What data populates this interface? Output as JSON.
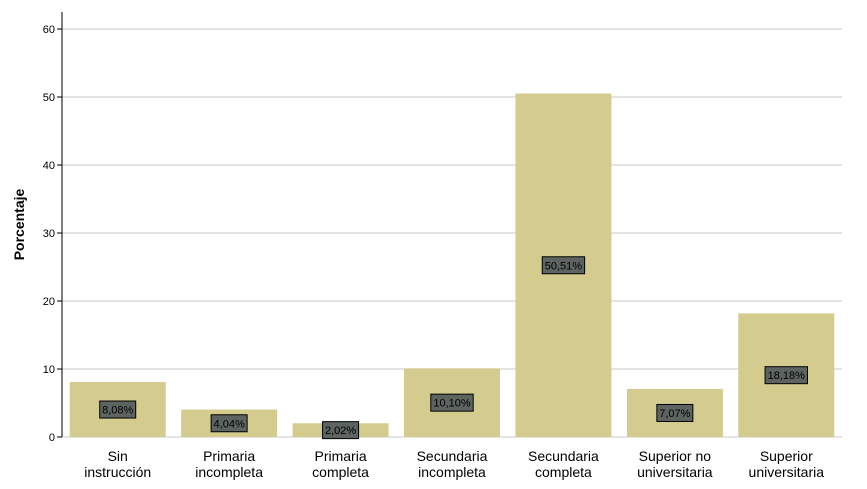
{
  "chart_data": {
    "type": "bar",
    "title": "",
    "xlabel": "",
    "ylabel": "Porcentaje",
    "ylim": [
      0,
      60
    ],
    "yticks": [
      0,
      10,
      20,
      30,
      40,
      50,
      60
    ],
    "grid": true,
    "categories": [
      [
        "Sin",
        "instrucción"
      ],
      [
        "Primaria",
        "incompleta"
      ],
      [
        "Primaria",
        "completa"
      ],
      [
        "Secundaria",
        "incompleta"
      ],
      [
        "Secundaria",
        "completa"
      ],
      [
        "Superior no",
        "universitaria"
      ],
      [
        "Superior",
        "universitaria"
      ]
    ],
    "values": [
      8.08,
      4.04,
      2.02,
      10.1,
      50.51,
      7.07,
      18.18
    ],
    "data_labels": [
      "8,08%",
      "4,04%",
      "2,02%",
      "10,10%",
      "50,51%",
      "7,07%",
      "18,18%"
    ],
    "colors": {
      "bar": "#d4cc8e",
      "label_bg": "#5d6360",
      "grid": "#c8c8c8",
      "axis": "#000000"
    }
  }
}
